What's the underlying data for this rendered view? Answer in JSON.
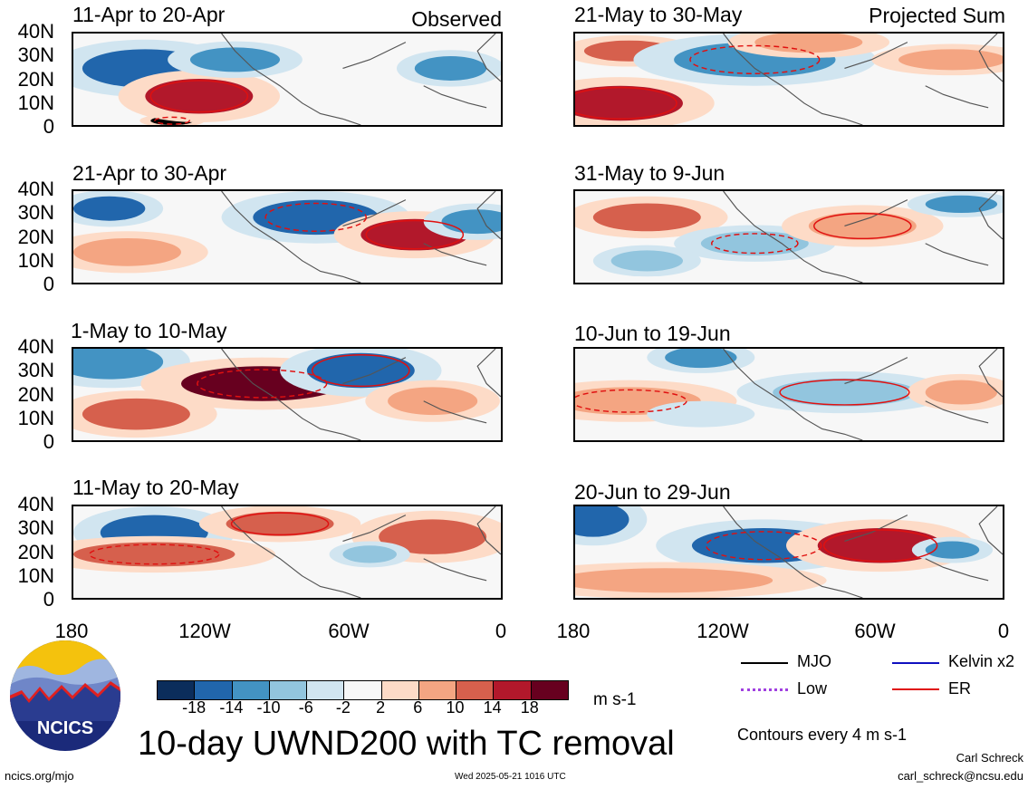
{
  "columns": {
    "left_label": "Observed",
    "right_label": "Projected Sum"
  },
  "panels": {
    "left": [
      {
        "title": "11-Apr to 20-Apr"
      },
      {
        "title": "21-Apr to 30-Apr"
      },
      {
        "title": "1-May to 10-May"
      },
      {
        "title": "11-May to 20-May"
      }
    ],
    "right": [
      {
        "title": "21-May to 30-May"
      },
      {
        "title": "31-May to 9-Jun"
      },
      {
        "title": "10-Jun to 19-Jun"
      },
      {
        "title": "20-Jun to 29-Jun"
      }
    ]
  },
  "axes": {
    "lat_ticks": [
      "40N",
      "30N",
      "20N",
      "10N",
      "0"
    ],
    "lon_ticks": [
      "180",
      "120W",
      "60W",
      "0"
    ]
  },
  "colorbar": {
    "unit": "m s-1",
    "labels": [
      "-18",
      "-14",
      "-10",
      "-6",
      "-2",
      "2",
      "6",
      "10",
      "14",
      "18"
    ],
    "colors": [
      "#0b2d5b",
      "#2166ac",
      "#4393c3",
      "#92c5de",
      "#d1e5f0",
      "#f7f7f7",
      "#fddbc7",
      "#f4a582",
      "#d6604d",
      "#b2182b",
      "#67001f"
    ]
  },
  "legend": {
    "mjo": "MJO",
    "low": "Low",
    "kelvin": "Kelvin x2",
    "er": "ER",
    "colors": {
      "mjo": "#000000",
      "low": "#a040e0",
      "kelvin": "#1010c0",
      "er": "#e01010"
    }
  },
  "main_title": "10-day UWND200 with TC removal",
  "contours_note": "Contours every 4 m s-1",
  "logo_text": "NCICS",
  "footer": {
    "url": "ncics.org/mjo",
    "timestamp": "Wed 2025-05-21 1016 UTC",
    "author": "Carl Schreck",
    "email": "carl_schreck@ncsu.edu"
  }
}
